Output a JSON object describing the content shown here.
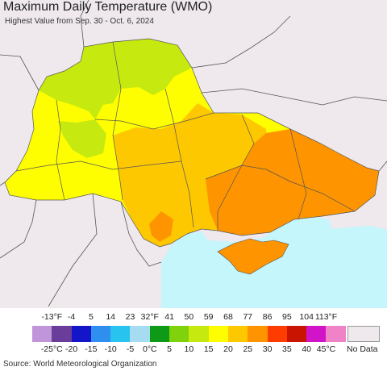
{
  "title": "Maximum Daily Temperature (WMO)",
  "subtitle": "Highest Value from Sep. 30 - Oct. 6, 2024",
  "source": "Source: World Meteorological Organization",
  "legend": {
    "fahrenheit_labels": [
      "-13°F",
      "-4",
      "5",
      "14",
      "23",
      "32°F",
      "41",
      "50",
      "59",
      "68",
      "77",
      "86",
      "95",
      "104",
      "113°F"
    ],
    "celsius_labels": [
      "-25°C",
      "-20",
      "-15",
      "-10",
      "-5",
      "0°C",
      "5",
      "10",
      "15",
      "20",
      "25",
      "30",
      "35",
      "40",
      "45°C"
    ],
    "colors": [
      "#c095d9",
      "#6a3d9a",
      "#1414c8",
      "#2f8fef",
      "#29c3ef",
      "#a6dcf2",
      "#0e9a16",
      "#7fd20c",
      "#c6ea10",
      "#fefe00",
      "#fec800",
      "#fe9400",
      "#fe3c00",
      "#c81400",
      "#d214c8",
      "#f082c8"
    ],
    "no_data_label": "No Data",
    "no_data_color": "#efe9ee"
  },
  "map": {
    "sea_color": "#c4f6fb",
    "outside_color": "#efe9ee",
    "border_color": "#555555"
  }
}
